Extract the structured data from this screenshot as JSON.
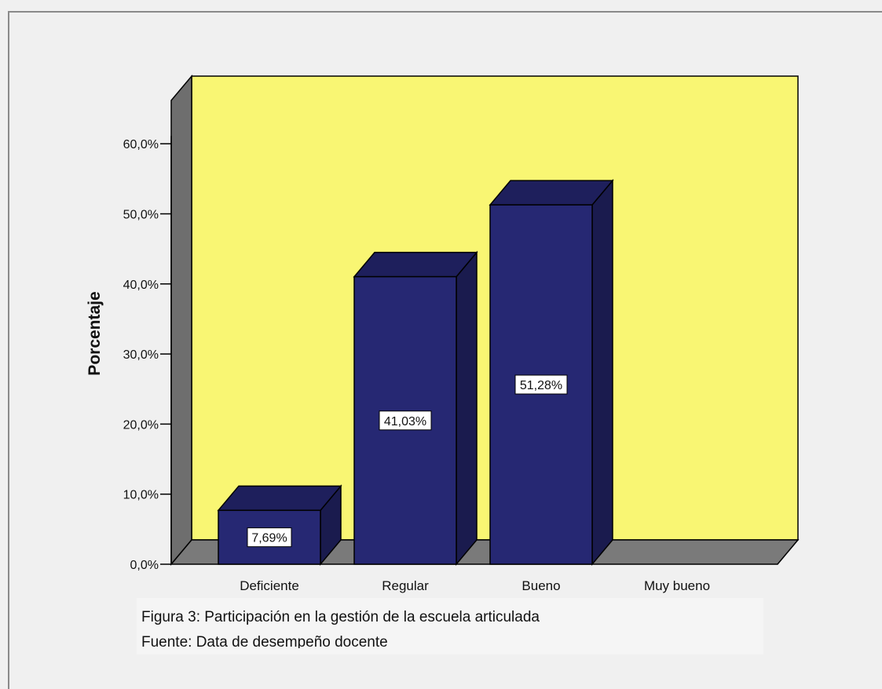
{
  "chart_data": {
    "type": "bar",
    "categories": [
      "Deficiente",
      "Regular",
      "Bueno",
      "Muy bueno"
    ],
    "values": [
      7.69,
      41.03,
      51.28,
      0
    ],
    "value_labels": [
      "7,69%",
      "41,03%",
      "51,28%",
      ""
    ],
    "ylabel": "Porcentaje",
    "xlabel": "",
    "ylim": [
      0,
      60
    ],
    "yticks": [
      0,
      10,
      20,
      30,
      40,
      50,
      60
    ],
    "ytick_labels": [
      "0,0%",
      "10,0%",
      "20,0%",
      "30,0%",
      "40,0%",
      "50,0%",
      "60,0%"
    ],
    "style": "3d",
    "grid": false,
    "colors": {
      "bar_front": "#262873",
      "bar_top": "#1e1f5c",
      "bar_side": "#1a1b4e",
      "plot_background": "#f9f673",
      "wall": "#6e6e6e",
      "floor": "#7a7a7a"
    }
  },
  "caption": {
    "line1": "Figura 3: Participación en la gestión de la escuela articulada",
    "line2": "Fuente: Data de desempeño docente"
  }
}
